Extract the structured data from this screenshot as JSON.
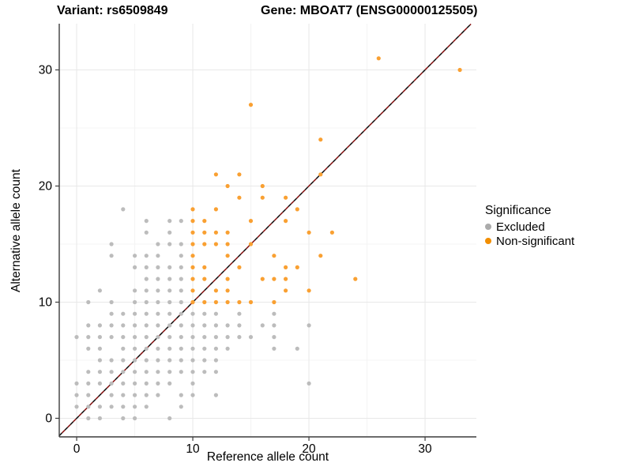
{
  "titles": {
    "left": "Variant: rs6509849",
    "right": "Gene: MBOAT7 (ENSG00000125505)"
  },
  "legend": {
    "title": "Significance",
    "items": [
      {
        "label": "Excluded",
        "color": "#ABABAB"
      },
      {
        "label": "Non-significant",
        "color": "#F28E00"
      }
    ]
  },
  "colors": {
    "excluded_point": "#BCBCBC",
    "nonsignificant_point": "#F9A032",
    "identity_line_red": "#8B1A1A",
    "identity_line_black": "#1A1A1A",
    "grid_major": "#E8E8E8",
    "grid_minor": "#F4F4F4",
    "axis_line": "#3C3C3C",
    "tick_text": "#000000"
  },
  "chart_data": {
    "type": "scatter",
    "title": "Variant: rs6509849 — Gene: MBOAT7 (ENSG00000125505)",
    "xlabel": "Reference allele count",
    "ylabel": "Alternative allele count",
    "xlim": [
      -1.5,
      34.42
    ],
    "ylim": [
      -1.6,
      33.95
    ],
    "x_ticks": [
      0,
      10,
      20,
      30
    ],
    "y_ticks": [
      0,
      10,
      20,
      30
    ],
    "x_minor_ticks": [
      5,
      15,
      25
    ],
    "y_minor_ticks": [
      5,
      15,
      25
    ],
    "grid": true,
    "legend_position": "right",
    "reference_line": {
      "type": "identity y=x",
      "style": "dashed",
      "colors": [
        "#8B1A1A",
        "#1A1A1A"
      ]
    },
    "series": [
      {
        "name": "Excluded",
        "color": "#BCBCBC",
        "points": [
          [
            1,
            0
          ],
          [
            2,
            0
          ],
          [
            4,
            0
          ],
          [
            5,
            0
          ],
          [
            8,
            0
          ],
          [
            0,
            1
          ],
          [
            1,
            1
          ],
          [
            2,
            1
          ],
          [
            3,
            1
          ],
          [
            4,
            1
          ],
          [
            5,
            1
          ],
          [
            6,
            1
          ],
          [
            9,
            1
          ],
          [
            0,
            2
          ],
          [
            1,
            2
          ],
          [
            3,
            2
          ],
          [
            4,
            2
          ],
          [
            5,
            2
          ],
          [
            6,
            2
          ],
          [
            7,
            2
          ],
          [
            9,
            2
          ],
          [
            10,
            2
          ],
          [
            12,
            2
          ],
          [
            0,
            3
          ],
          [
            1,
            3
          ],
          [
            2,
            3
          ],
          [
            3,
            3
          ],
          [
            4,
            3
          ],
          [
            5,
            3
          ],
          [
            6,
            3
          ],
          [
            7,
            3
          ],
          [
            8,
            3
          ],
          [
            10,
            3
          ],
          [
            20,
            3
          ],
          [
            1,
            4
          ],
          [
            2,
            4
          ],
          [
            3,
            4
          ],
          [
            4,
            4
          ],
          [
            5,
            4
          ],
          [
            6,
            4
          ],
          [
            7,
            4
          ],
          [
            8,
            4
          ],
          [
            9,
            4
          ],
          [
            10,
            4
          ],
          [
            11,
            4
          ],
          [
            12,
            4
          ],
          [
            2,
            5
          ],
          [
            3,
            5
          ],
          [
            4,
            5
          ],
          [
            5,
            5
          ],
          [
            6,
            5
          ],
          [
            7,
            5
          ],
          [
            8,
            5
          ],
          [
            9,
            5
          ],
          [
            10,
            5
          ],
          [
            11,
            5
          ],
          [
            12,
            5
          ],
          [
            1,
            6
          ],
          [
            2,
            6
          ],
          [
            4,
            6
          ],
          [
            5,
            6
          ],
          [
            6,
            6
          ],
          [
            7,
            6
          ],
          [
            8,
            6
          ],
          [
            9,
            6
          ],
          [
            10,
            6
          ],
          [
            11,
            6
          ],
          [
            12,
            6
          ],
          [
            13,
            6
          ],
          [
            17,
            6
          ],
          [
            19,
            6
          ],
          [
            0,
            7
          ],
          [
            1,
            7
          ],
          [
            2,
            7
          ],
          [
            3,
            7
          ],
          [
            4,
            7
          ],
          [
            5,
            7
          ],
          [
            6,
            7
          ],
          [
            7,
            7
          ],
          [
            8,
            7
          ],
          [
            9,
            7
          ],
          [
            10,
            7
          ],
          [
            11,
            7
          ],
          [
            12,
            7
          ],
          [
            13,
            7
          ],
          [
            14,
            7
          ],
          [
            15,
            7
          ],
          [
            17,
            7
          ],
          [
            1,
            8
          ],
          [
            2,
            8
          ],
          [
            3,
            8
          ],
          [
            4,
            8
          ],
          [
            5,
            8
          ],
          [
            6,
            8
          ],
          [
            7,
            8
          ],
          [
            8,
            8
          ],
          [
            9,
            8
          ],
          [
            10,
            8
          ],
          [
            11,
            8
          ],
          [
            12,
            8
          ],
          [
            13,
            8
          ],
          [
            14,
            8
          ],
          [
            16,
            8
          ],
          [
            17,
            8
          ],
          [
            20,
            8
          ],
          [
            3,
            9
          ],
          [
            4,
            9
          ],
          [
            5,
            9
          ],
          [
            6,
            9
          ],
          [
            7,
            9
          ],
          [
            8,
            9
          ],
          [
            9,
            9
          ],
          [
            10,
            9
          ],
          [
            11,
            9
          ],
          [
            12,
            9
          ],
          [
            14,
            9
          ],
          [
            17,
            9
          ],
          [
            1,
            10
          ],
          [
            3,
            10
          ],
          [
            5,
            10
          ],
          [
            6,
            10
          ],
          [
            7,
            10
          ],
          [
            8,
            10
          ],
          [
            9,
            10
          ],
          [
            2,
            11
          ],
          [
            5,
            11
          ],
          [
            6,
            11
          ],
          [
            7,
            11
          ],
          [
            8,
            11
          ],
          [
            9,
            11
          ],
          [
            6,
            12
          ],
          [
            7,
            12
          ],
          [
            8,
            12
          ],
          [
            9,
            12
          ],
          [
            5,
            13
          ],
          [
            6,
            13
          ],
          [
            7,
            13
          ],
          [
            8,
            13
          ],
          [
            9,
            13
          ],
          [
            3,
            14
          ],
          [
            5,
            14
          ],
          [
            6,
            14
          ],
          [
            7,
            14
          ],
          [
            9,
            14
          ],
          [
            3,
            15
          ],
          [
            7,
            15
          ],
          [
            8,
            15
          ],
          [
            9,
            15
          ],
          [
            6,
            16
          ],
          [
            8,
            16
          ],
          [
            6,
            17
          ],
          [
            8,
            17
          ],
          [
            9,
            17
          ],
          [
            4,
            18
          ]
        ]
      },
      {
        "name": "Non-significant",
        "color": "#F9A032",
        "points": [
          [
            10,
            10
          ],
          [
            11,
            10
          ],
          [
            12,
            10
          ],
          [
            13,
            10
          ],
          [
            14,
            10
          ],
          [
            15,
            10
          ],
          [
            17,
            10
          ],
          [
            10,
            11
          ],
          [
            12,
            11
          ],
          [
            13,
            11
          ],
          [
            18,
            11
          ],
          [
            20,
            11
          ],
          [
            10,
            12
          ],
          [
            11,
            12
          ],
          [
            13,
            12
          ],
          [
            16,
            12
          ],
          [
            17,
            12
          ],
          [
            18,
            12
          ],
          [
            24,
            12
          ],
          [
            10,
            13
          ],
          [
            11,
            13
          ],
          [
            14,
            13
          ],
          [
            18,
            13
          ],
          [
            19,
            13
          ],
          [
            10,
            14
          ],
          [
            13,
            14
          ],
          [
            17,
            14
          ],
          [
            21,
            14
          ],
          [
            10,
            15
          ],
          [
            11,
            15
          ],
          [
            12,
            15
          ],
          [
            13,
            15
          ],
          [
            15,
            15
          ],
          [
            10,
            16
          ],
          [
            11,
            16
          ],
          [
            12,
            16
          ],
          [
            13,
            16
          ],
          [
            20,
            16
          ],
          [
            22,
            16
          ],
          [
            10,
            17
          ],
          [
            11,
            17
          ],
          [
            15,
            17
          ],
          [
            18,
            17
          ],
          [
            10,
            18
          ],
          [
            12,
            18
          ],
          [
            19,
            18
          ],
          [
            14,
            19
          ],
          [
            16,
            19
          ],
          [
            18,
            19
          ],
          [
            13,
            20
          ],
          [
            16,
            20
          ],
          [
            12,
            21
          ],
          [
            14,
            21
          ],
          [
            21,
            21
          ],
          [
            21,
            24
          ],
          [
            15,
            27
          ],
          [
            33,
            30
          ],
          [
            26,
            31
          ]
        ]
      }
    ]
  }
}
